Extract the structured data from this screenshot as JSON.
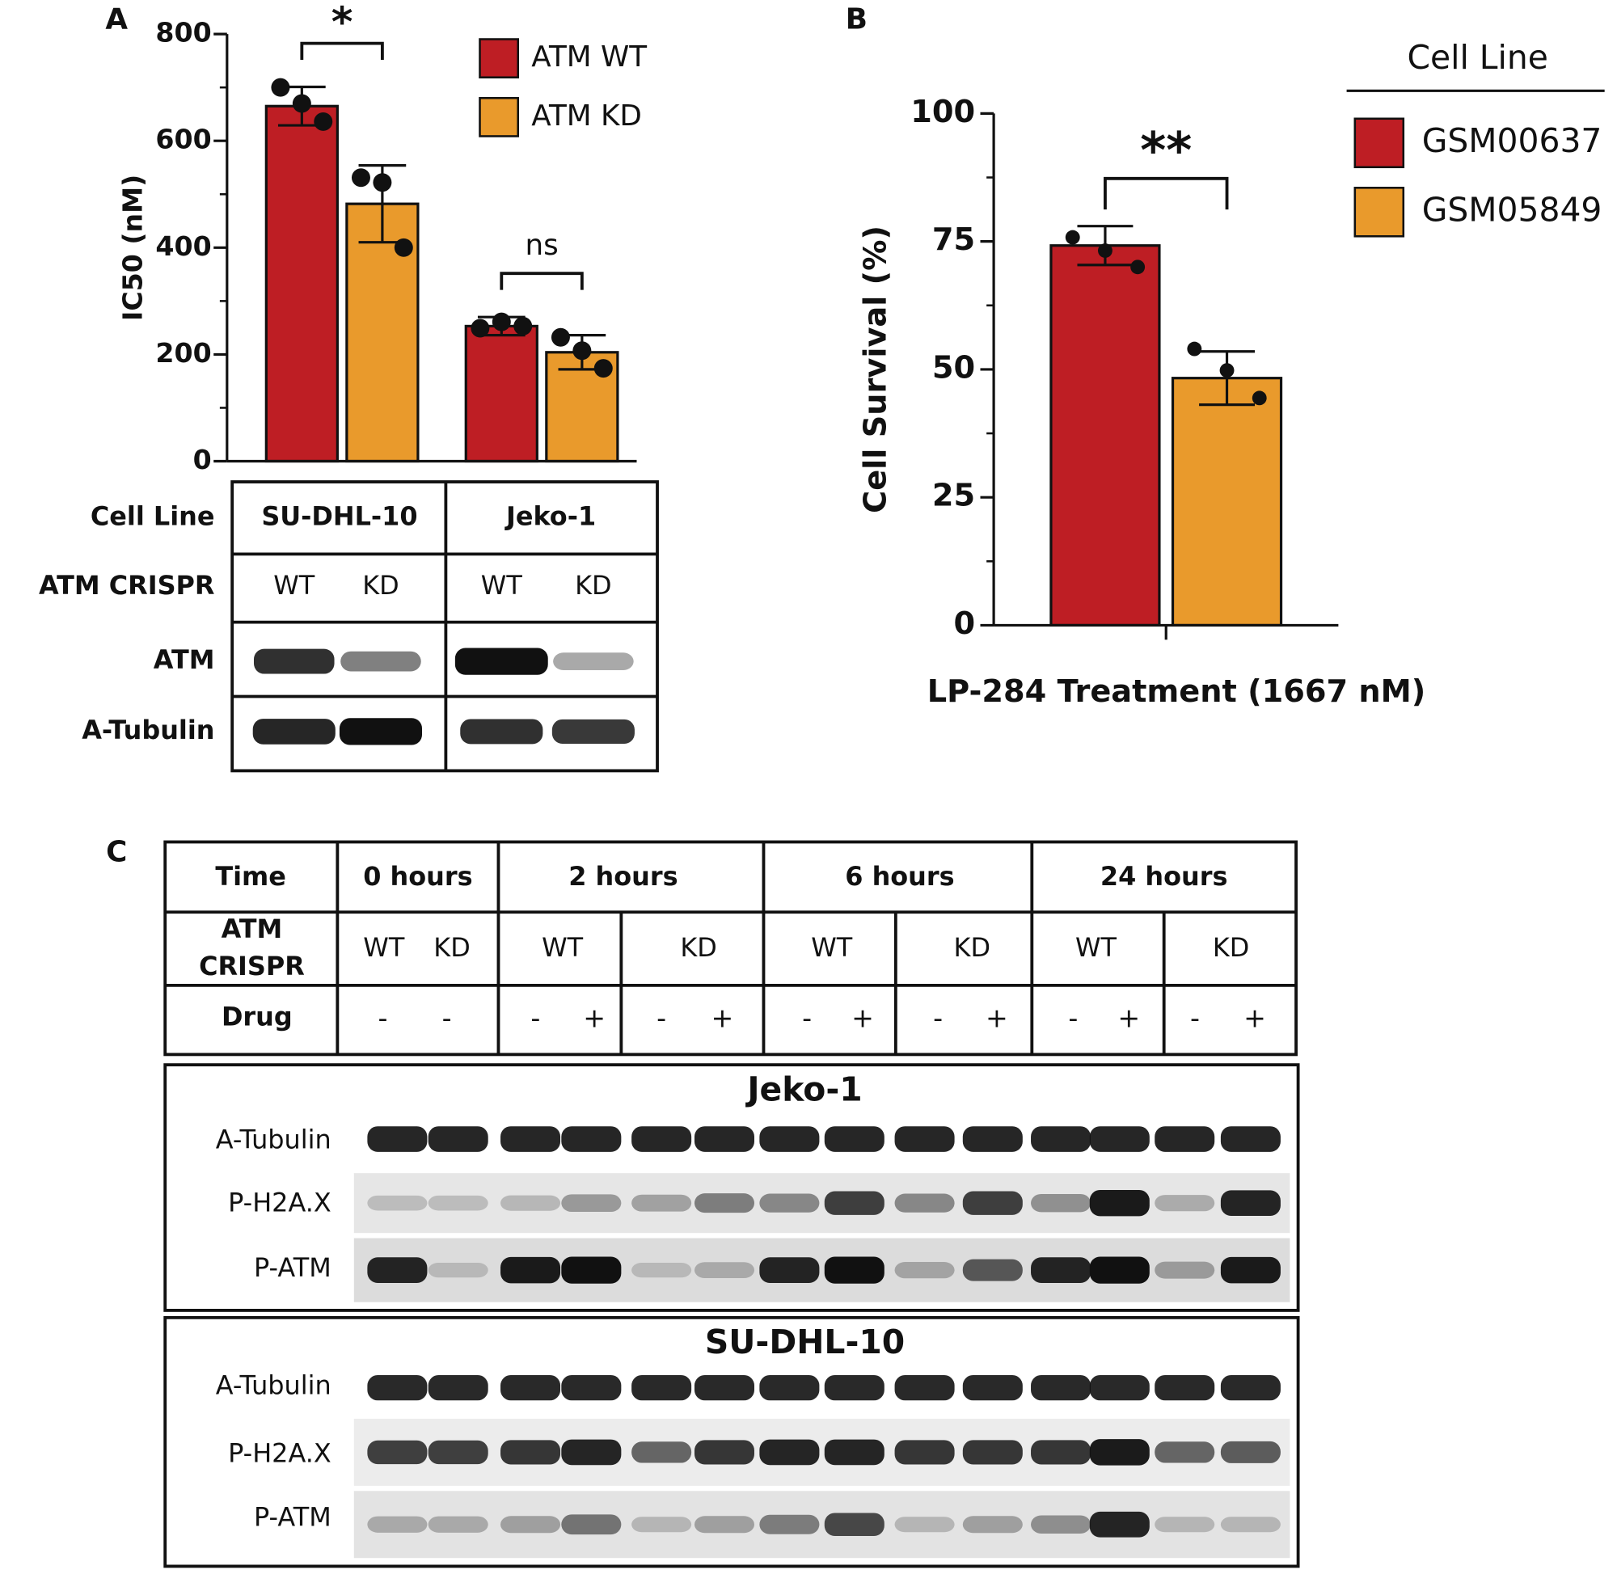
{
  "panel_labels": [
    "A",
    "B",
    "C"
  ],
  "chart_data": [
    {
      "type": "bar",
      "y_label": "IC50 (nM)",
      "categories": [
        null,
        null
      ],
      "series": [
        {
          "name": "ATM WT",
          "color": "#be1e24",
          "values": [
            665,
            253
          ],
          "errors": [
            36,
            17
          ],
          "points": [
            [
              700,
              670,
              636
            ],
            [
              249,
              261,
              253
            ]
          ]
        },
        {
          "name": "ATM KD",
          "color": "#e99a2c",
          "values": [
            482,
            204
          ],
          "errors": [
            72,
            32
          ],
          "points": [
            [
              531,
              522,
              400
            ],
            [
              232,
              207,
              174
            ]
          ]
        }
      ],
      "annotations": [
        "*",
        "ns"
      ],
      "ylim": [
        0,
        800
      ],
      "yticks": [
        0,
        200,
        400,
        600,
        800
      ],
      "yminorticks": [
        100,
        300,
        500,
        700
      ],
      "legend": "upper right"
    },
    {
      "type": "bar",
      "y_label": "Cell Survival (%)",
      "x_label": "LP-284 Treatment (1667 nM)",
      "categories": [
        null
      ],
      "legend_title": "Cell Line",
      "series": [
        {
          "name": "GSM00637",
          "color": "#be1e24",
          "values": [
            74.2
          ],
          "errors": [
            3.8
          ],
          "points": [
            [
              75.8,
              73.2,
              70.0
            ]
          ]
        },
        {
          "name": "GSM05849",
          "color": "#e99a2c",
          "values": [
            48.3
          ],
          "errors": [
            5.2
          ],
          "points": [
            [
              54.0,
              49.8,
              44.4
            ]
          ]
        }
      ],
      "annotations": [
        "**"
      ],
      "ylim": [
        0,
        100
      ],
      "yticks": [
        0,
        25,
        50,
        75,
        100
      ],
      "yminorticks": [
        12.5,
        37.5,
        62.5,
        87.5
      ],
      "legend": "right"
    }
  ],
  "table_a": {
    "row_labels": [
      "Cell Line",
      "ATM CRISPR",
      "ATM",
      "A-Tubulin"
    ],
    "cell_lines": [
      "SU-DHL-10",
      "Jeko-1"
    ],
    "atm_crispr": [
      "WT",
      "KD",
      "WT",
      "KD"
    ]
  },
  "table_c": {
    "row_labels": [
      "Time",
      [
        "ATM",
        "CRISPR"
      ],
      "Drug"
    ],
    "times": [
      "0 hours",
      "2 hours",
      "6 hours",
      "24 hours"
    ],
    "atm_crispr": [
      "WT",
      "KD",
      "WT",
      "KD",
      "WT",
      "KD",
      "WT",
      "KD"
    ],
    "drug": [
      "-",
      "-",
      "-",
      "+",
      "-",
      "+",
      "-",
      "+",
      "-",
      "+",
      "-",
      "+",
      "-",
      "+"
    ]
  },
  "blots_c": {
    "panels": [
      {
        "title": "Jeko-1",
        "rows": [
          "A-Tubulin",
          "P-H2A.X",
          "P-ATM"
        ]
      },
      {
        "title": "SU-DHL-10",
        "rows": [
          "A-Tubulin",
          "P-H2A.X",
          "P-ATM"
        ]
      }
    ]
  }
}
